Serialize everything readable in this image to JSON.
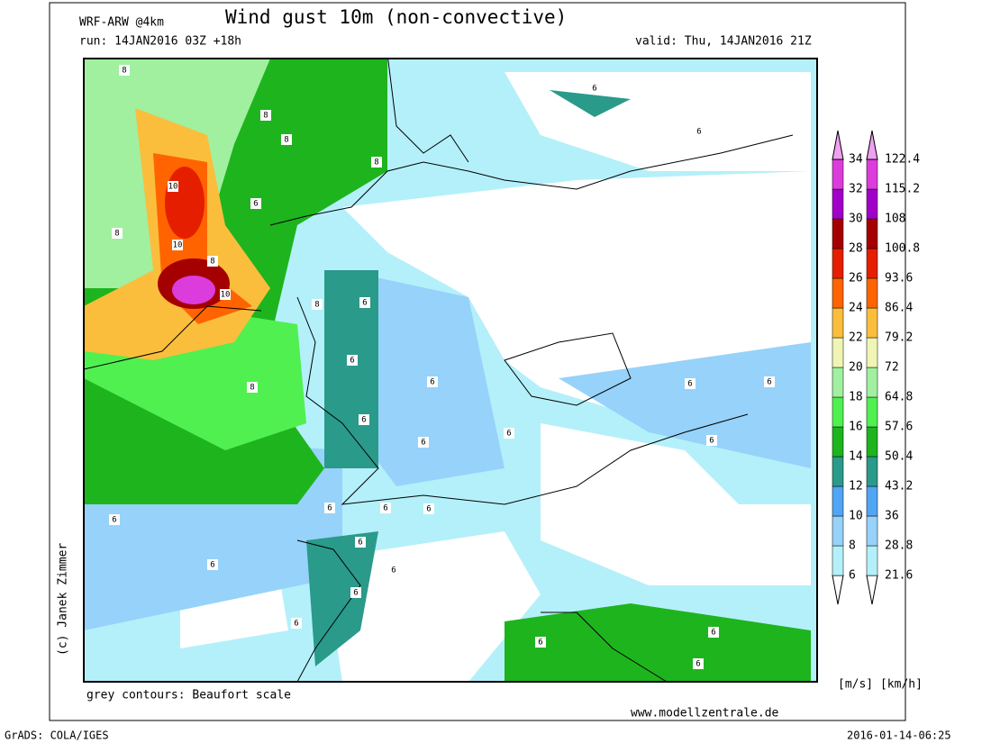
{
  "header": {
    "model": "WRF-ARW @4km",
    "title": "Wind gust 10m (non-convective)",
    "run": "run: 14JAN2016 03Z +18h",
    "valid": "valid: Thu, 14JAN2016 21Z"
  },
  "legend": {
    "ms_labels": [
      6,
      8,
      10,
      12,
      14,
      16,
      18,
      20,
      22,
      24,
      26,
      28,
      30,
      32,
      34
    ],
    "kmh_labels": [
      21.6,
      28.8,
      36,
      43.2,
      50.4,
      57.6,
      64.8,
      72,
      79.2,
      86.4,
      93.6,
      100.8,
      108,
      115.2,
      122.4
    ],
    "colors": [
      "#ffffff",
      "#b4f0fa",
      "#96d2fa",
      "#50a5f5",
      "#2a9a8a",
      "#1eb41e",
      "#50f050",
      "#a0f0a0",
      "#f0f5b4",
      "#fabe3c",
      "#ff6400",
      "#e61e00",
      "#a50000",
      "#a000c8",
      "#dc3cdc",
      "#f0a0f0"
    ],
    "units": "[m/s] [km/h]"
  },
  "map": {
    "contour_labels": [
      8,
      8,
      8,
      8,
      10,
      6,
      8,
      10,
      8,
      10,
      6,
      6,
      8,
      6,
      8,
      6,
      6,
      6,
      6,
      6,
      6,
      6,
      6,
      6,
      6,
      6,
      6,
      6,
      6,
      6,
      6,
      6,
      6,
      6,
      6
    ]
  },
  "footer": {
    "contours_note": "grey contours: Beaufort scale",
    "website": "www.modellzentrale.de",
    "copyright": "(c) Janek Zimmer",
    "grads": "GrADS: COLA/IGES",
    "timestamp": "2016-01-14-06:25"
  }
}
